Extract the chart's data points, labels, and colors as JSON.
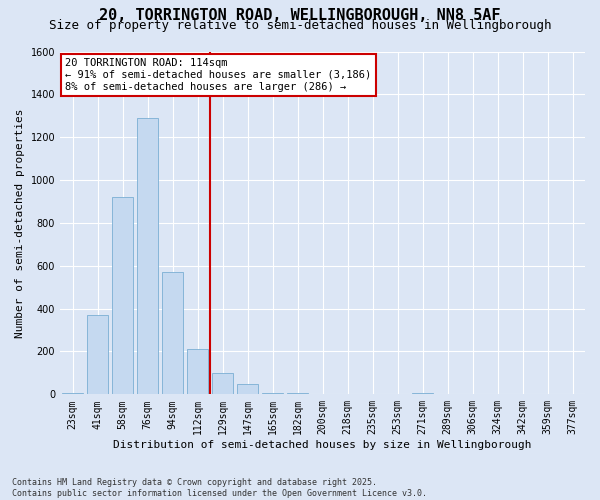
{
  "title": "20, TORRINGTON ROAD, WELLINGBOROUGH, NN8 5AF",
  "subtitle": "Size of property relative to semi-detached houses in Wellingborough",
  "xlabel": "Distribution of semi-detached houses by size in Wellingborough",
  "ylabel": "Number of semi-detached properties",
  "bar_labels": [
    "23sqm",
    "41sqm",
    "58sqm",
    "76sqm",
    "94sqm",
    "112sqm",
    "129sqm",
    "147sqm",
    "165sqm",
    "182sqm",
    "200sqm",
    "218sqm",
    "235sqm",
    "253sqm",
    "271sqm",
    "289sqm",
    "306sqm",
    "324sqm",
    "342sqm",
    "359sqm",
    "377sqm"
  ],
  "bar_values": [
    8,
    370,
    920,
    1290,
    570,
    210,
    100,
    50,
    8,
    4,
    0,
    0,
    0,
    0,
    4,
    0,
    0,
    0,
    0,
    0,
    0
  ],
  "bar_color": "#c5d9f0",
  "bar_edge_color": "#7bafd4",
  "vline_index": 5,
  "annotation_title": "20 TORRINGTON ROAD: 114sqm",
  "annotation_line1": "← 91% of semi-detached houses are smaller (3,186)",
  "annotation_line2": "8% of semi-detached houses are larger (286) →",
  "annotation_box_facecolor": "#ffffff",
  "annotation_box_edgecolor": "#cc0000",
  "vline_color": "#cc0000",
  "ylim": [
    0,
    1600
  ],
  "yticks": [
    0,
    200,
    400,
    600,
    800,
    1000,
    1200,
    1400,
    1600
  ],
  "background_color": "#dce6f5",
  "plot_background": "#dce6f5",
  "grid_color": "#ffffff",
  "footer_line1": "Contains HM Land Registry data © Crown copyright and database right 2025.",
  "footer_line2": "Contains public sector information licensed under the Open Government Licence v3.0.",
  "title_fontsize": 11,
  "subtitle_fontsize": 9,
  "axis_label_fontsize": 8,
  "tick_fontsize": 7,
  "annotation_fontsize": 7.5,
  "footer_fontsize": 6
}
